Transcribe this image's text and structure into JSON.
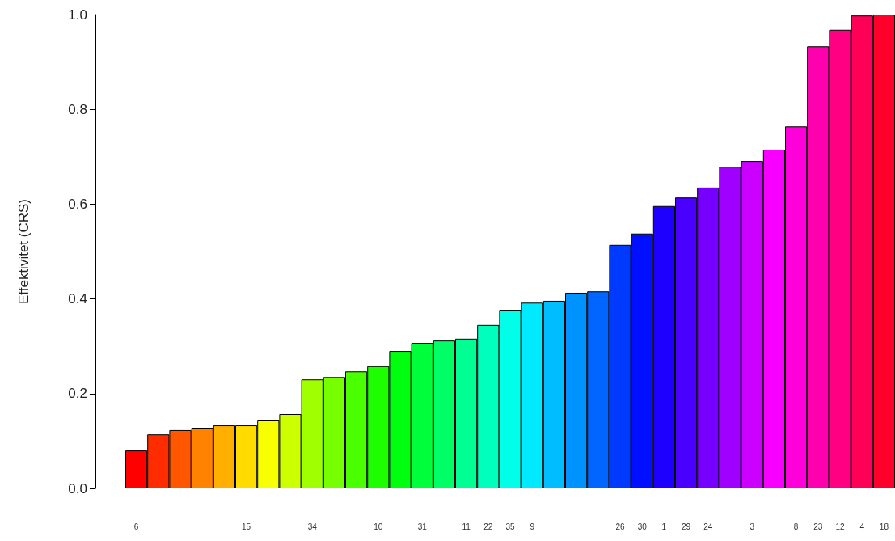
{
  "chart_data": {
    "type": "bar",
    "ylabel": "Effektivitet (CRS)",
    "categories": [
      "6",
      null,
      null,
      null,
      null,
      "15",
      null,
      null,
      "34",
      null,
      null,
      "10",
      null,
      "31",
      null,
      "11",
      "22",
      "35",
      "9",
      null,
      null,
      null,
      "26",
      "30",
      "1",
      "29",
      "24",
      null,
      "3",
      null,
      "8",
      "23",
      "12",
      "4",
      "18"
    ],
    "values": [
      0.08,
      0.114,
      0.123,
      0.128,
      0.133,
      0.133,
      0.145,
      0.157,
      0.23,
      0.235,
      0.247,
      0.258,
      0.29,
      0.307,
      0.312,
      0.316,
      0.345,
      0.377,
      0.392,
      0.396,
      0.413,
      0.416,
      0.514,
      0.538,
      0.596,
      0.614,
      0.635,
      0.679,
      0.691,
      0.715,
      0.764,
      0.933,
      0.968,
      0.998,
      1.0
    ],
    "colors": [
      "#FF0000",
      "#FF2C00",
      "#FF5700",
      "#FF8300",
      "#FFAF00",
      "#FFDB00",
      "#F8FF00",
      "#CCFF00",
      "#A0FF00",
      "#75FF00",
      "#49FF00",
      "#1DFF00",
      "#00FF0F",
      "#00FF3A",
      "#00FF66",
      "#00FF92",
      "#00FFBD",
      "#00FFE9",
      "#00E9FF",
      "#00BDFF",
      "#0092FF",
      "#0066FF",
      "#003AFF",
      "#000FFF",
      "#1D00FF",
      "#4900FF",
      "#7500FF",
      "#A000FF",
      "#CC00FF",
      "#F800FF",
      "#FF00DB",
      "#FF00AF",
      "#FF0083",
      "#FF0057",
      "#FF002C"
    ],
    "ylim": [
      0,
      1
    ],
    "yticks": [
      {
        "value": 0,
        "label": "0.0"
      },
      {
        "value": 0.2,
        "label": "0.2"
      },
      {
        "value": 0.4,
        "label": "0.4"
      },
      {
        "value": 0.6,
        "label": "0.6"
      },
      {
        "value": 0.8,
        "label": "0.8"
      },
      {
        "value": 1,
        "label": "1.0"
      }
    ],
    "grid": false
  }
}
